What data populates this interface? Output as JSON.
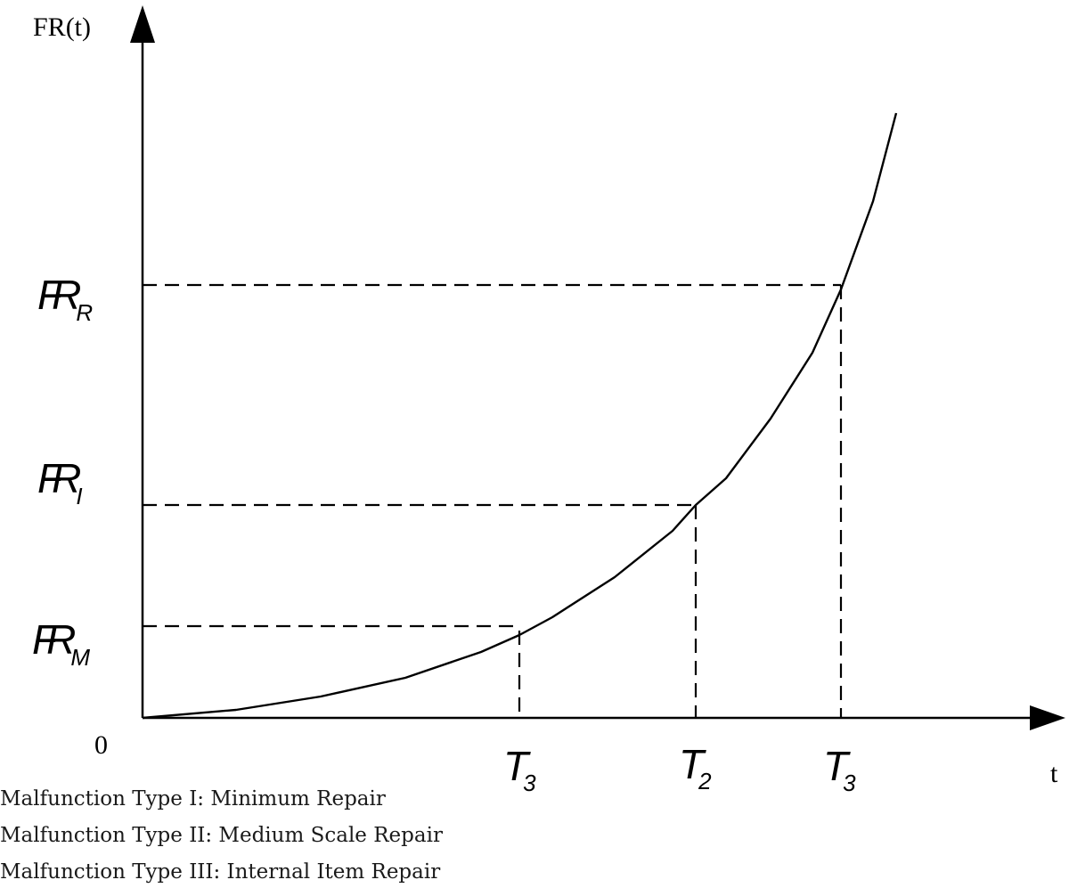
{
  "diagram": {
    "y_axis_label": "FR(t)",
    "x_axis_label": "t",
    "origin_label": "0",
    "thresholds": [
      {
        "symbol": "FR",
        "subscript": "M"
      },
      {
        "symbol": "FR",
        "subscript": "I"
      },
      {
        "symbol": "FR",
        "subscript": "R"
      }
    ],
    "times": [
      {
        "symbol": "T",
        "subscript": "3"
      },
      {
        "symbol": "T",
        "subscript": "2"
      },
      {
        "symbol": "T",
        "subscript": "3"
      }
    ],
    "curve": "increasing",
    "legend": [
      "Malfunction Type I: Minimum Repair",
      "Malfunction Type II: Medium Scale Repair",
      "Malfunction Type III: Internal Item Repair"
    ]
  }
}
